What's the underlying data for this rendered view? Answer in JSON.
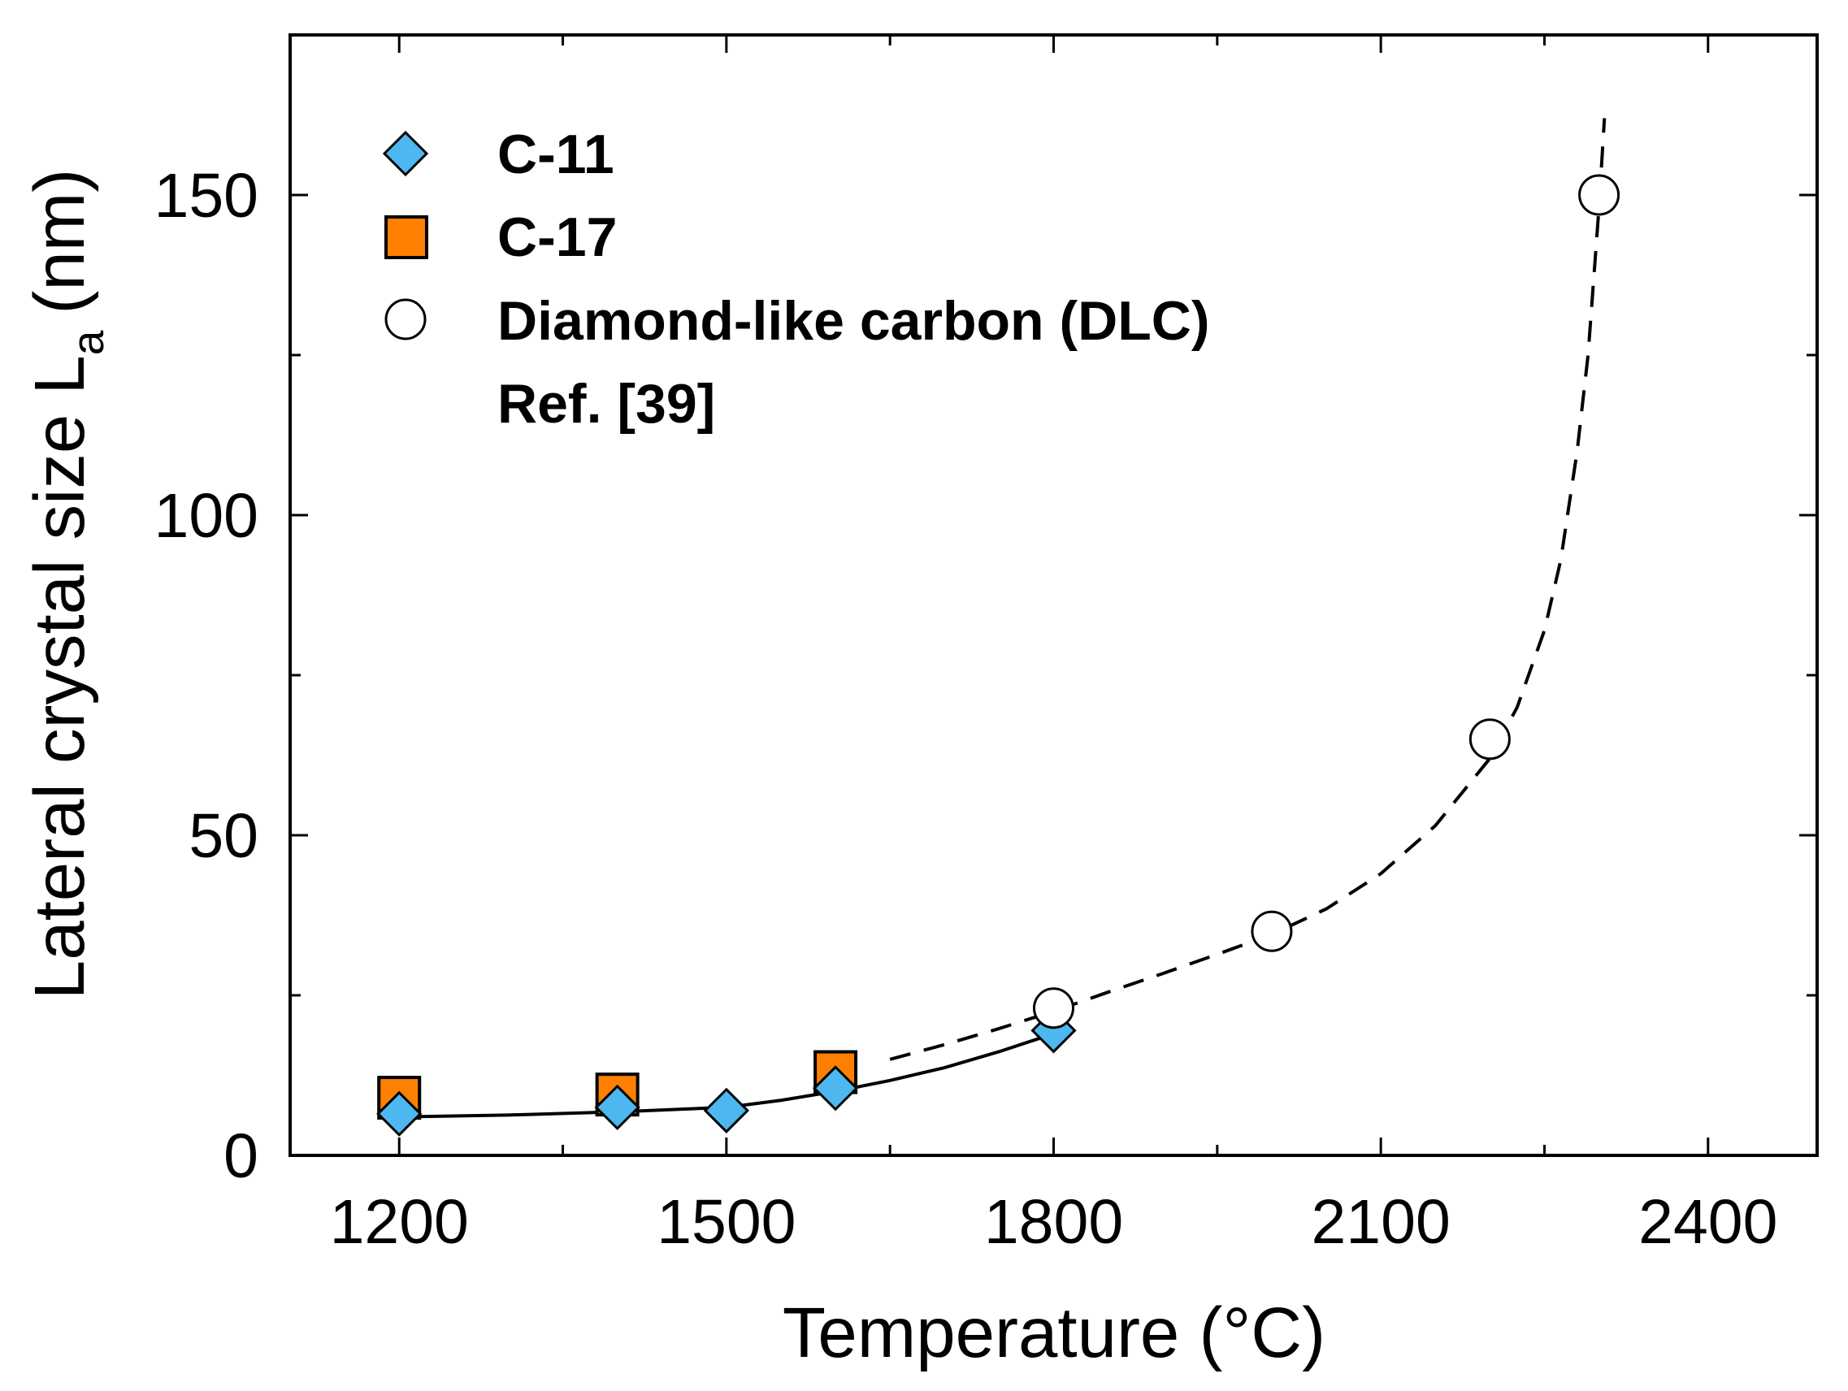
{
  "chart_data": {
    "type": "scatter",
    "xlabel": "Temperature (°C)",
    "ylabel": "Lateral crystal size L",
    "ylabel_subscript": "a",
    "ylabel_unit": "(nm)",
    "xlim": [
      1100,
      2500
    ],
    "ylim": [
      0,
      175
    ],
    "xticks": [
      1200,
      1500,
      1800,
      2100,
      2400
    ],
    "yticks": [
      0,
      50,
      100,
      150
    ],
    "xtick_labels": [
      "1200",
      "1500",
      "1800",
      "2100",
      "2400"
    ],
    "ytick_labels": [
      "0",
      "50",
      "100",
      "150"
    ],
    "grid": false,
    "legend_position": "top-left",
    "series": [
      {
        "name": "C-11",
        "marker": "diamond",
        "color": "#4db8f0",
        "x": [
          1200,
          1400,
          1500,
          1600,
          1800
        ],
        "y": [
          6.5,
          7.5,
          7,
          10.5,
          19.5
        ]
      },
      {
        "name": "C-17",
        "marker": "square",
        "color": "#ff8000",
        "x": [
          1200,
          1400,
          1600
        ],
        "y": [
          9,
          9.5,
          13
        ]
      },
      {
        "name": "Diamond-like carbon (DLC)",
        "legend_subtitle": "Ref. [39]",
        "marker": "circle",
        "color": "#ffffff",
        "x": [
          1800,
          2000,
          2200,
          2300
        ],
        "y": [
          23,
          35,
          65,
          150
        ]
      }
    ],
    "fit_lines": [
      {
        "name": "C-11 / C-17 trend",
        "style": "solid",
        "x": [
          1200,
          1300,
          1400,
          1500,
          1550,
          1600,
          1650,
          1700,
          1750,
          1800
        ],
        "y": [
          6,
          6.3,
          6.8,
          7.5,
          8.6,
          10,
          11.7,
          13.7,
          16.2,
          19
        ]
      },
      {
        "name": "DLC trend",
        "style": "dashed",
        "x": [
          1650,
          1700,
          1750,
          1800,
          1850,
          1900,
          1950,
          2000,
          2050,
          2100,
          2150,
          2200,
          2225,
          2250,
          2265,
          2280,
          2290,
          2300,
          2305
        ],
        "y": [
          15,
          17.3,
          19.8,
          22.5,
          25.5,
          28.4,
          31.4,
          34.5,
          38.5,
          44,
          51.5,
          62,
          70,
          82,
          93,
          110,
          125,
          148,
          162
        ]
      }
    ]
  }
}
